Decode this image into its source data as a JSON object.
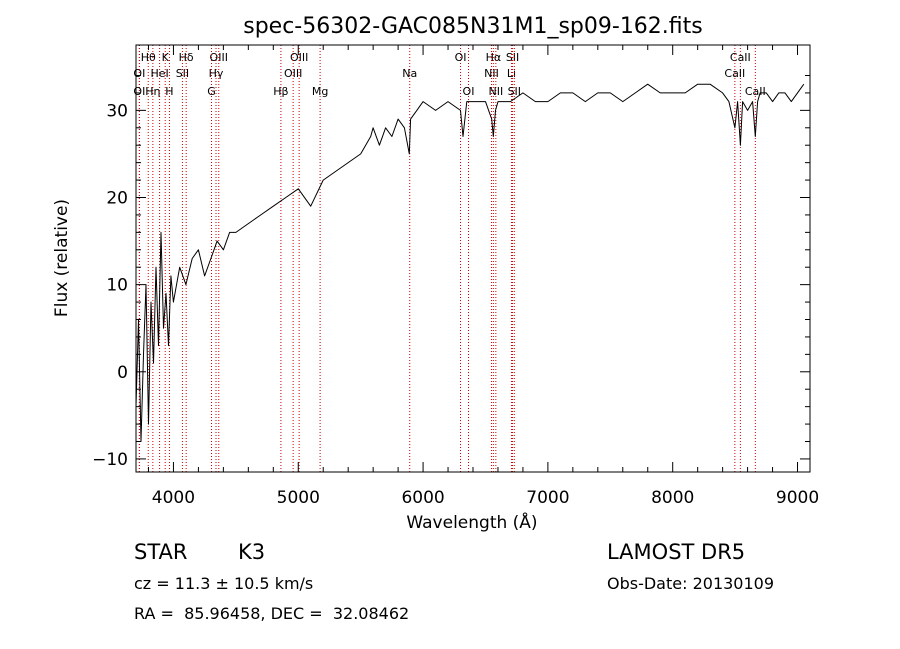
{
  "chart_data": {
    "type": "line",
    "title": "spec-56302-GAC085N31M1_sp09-162.fits",
    "xlabel": "Wavelength (Å)",
    "ylabel": "Flux (relative)",
    "xlim": [
      3700,
      9100
    ],
    "ylim": [
      -11.5,
      37.5
    ],
    "x_ticks": [
      4000,
      5000,
      6000,
      7000,
      8000,
      9000
    ],
    "y_ticks": [
      -10,
      0,
      10,
      20,
      30
    ],
    "grid": false,
    "line_color": "#000000",
    "marker_color": "#cc0000",
    "series": [
      {
        "x": [
          3700,
          3720,
          3740,
          3760,
          3780,
          3800,
          3820,
          3840,
          3860,
          3880,
          3900,
          3920,
          3940,
          3960,
          3980,
          4000,
          4050,
          4100,
          4150,
          4200,
          4250,
          4300,
          4350,
          4400,
          4450,
          4500,
          4600,
          4700,
          4800,
          4900,
          5000,
          5100,
          5200,
          5300,
          5400,
          5500,
          5580,
          5600,
          5650,
          5700,
          5750,
          5800,
          5850,
          5890,
          5900,
          5950,
          6000,
          6100,
          6200,
          6300,
          6320,
          6350,
          6400,
          6500,
          6550,
          6563,
          6580,
          6600,
          6700,
          6800,
          6900,
          7000,
          7100,
          7200,
          7300,
          7400,
          7500,
          7600,
          7700,
          7800,
          7900,
          8000,
          8100,
          8200,
          8300,
          8400,
          8450,
          8498,
          8520,
          8542,
          8560,
          8600,
          8640,
          8662,
          8680,
          8700,
          8750,
          8800,
          8850,
          8900,
          8950,
          9000,
          9050
        ],
        "y": [
          -4,
          6,
          -8,
          2,
          10,
          -6,
          8,
          1,
          12,
          3,
          16,
          5,
          9,
          3,
          11,
          8,
          12,
          10,
          13,
          14,
          11,
          13,
          15,
          14,
          16,
          16,
          17,
          18,
          19,
          20,
          21,
          19,
          22,
          23,
          24,
          25,
          27,
          28,
          26,
          28,
          27,
          29,
          28,
          25,
          29,
          30,
          31,
          30,
          31,
          30,
          27,
          31,
          31,
          31,
          29,
          27,
          30,
          31,
          31,
          32,
          31,
          31,
          32,
          32,
          31,
          32,
          32,
          31,
          32,
          33,
          32,
          32,
          32,
          33,
          33,
          32,
          31,
          28,
          31,
          26,
          31,
          30,
          31,
          27,
          31,
          32,
          32,
          31,
          32,
          32,
          31,
          32,
          33
        ]
      }
    ],
    "line_markers": [
      {
        "label": "Hθ",
        "x": 3798,
        "row": 1
      },
      {
        "label": "OI",
        "x": 3727,
        "row": 2
      },
      {
        "label": "OI",
        "x": 3727,
        "row": 3
      },
      {
        "label": "Hη",
        "x": 3835,
        "row": 3
      },
      {
        "label": "HeI",
        "x": 3889,
        "row": 2
      },
      {
        "label": "K",
        "x": 3934,
        "row": 1
      },
      {
        "label": "H",
        "x": 3968,
        "row": 3
      },
      {
        "label": "Hδ",
        "x": 4102,
        "row": 1
      },
      {
        "label": "SII",
        "x": 4072,
        "row": 2
      },
      {
        "label": "OIII",
        "x": 4363,
        "row": 1
      },
      {
        "label": "Hγ",
        "x": 4341,
        "row": 2
      },
      {
        "label": "G",
        "x": 4305,
        "row": 3
      },
      {
        "label": "Hβ",
        "x": 4861,
        "row": 3
      },
      {
        "label": "OIII",
        "x": 5007,
        "row": 1
      },
      {
        "label": "OIII",
        "x": 4959,
        "row": 2
      },
      {
        "label": "Mg",
        "x": 5175,
        "row": 3
      },
      {
        "label": "Na",
        "x": 5893,
        "row": 2
      },
      {
        "label": "OI",
        "x": 6300,
        "row": 1
      },
      {
        "label": "OI",
        "x": 6364,
        "row": 3
      },
      {
        "label": "Hα",
        "x": 6563,
        "row": 1
      },
      {
        "label": "NII",
        "x": 6548,
        "row": 2
      },
      {
        "label": "NII",
        "x": 6583,
        "row": 3
      },
      {
        "label": "SII",
        "x": 6717,
        "row": 1
      },
      {
        "label": "Li",
        "x": 6708,
        "row": 2
      },
      {
        "label": "SII",
        "x": 6731,
        "row": 3
      },
      {
        "label": "CaII",
        "x": 8542,
        "row": 1
      },
      {
        "label": "CaII",
        "x": 8498,
        "row": 2
      },
      {
        "label": "CaII",
        "x": 8662,
        "row": 3
      }
    ]
  },
  "info": {
    "class_label": "STAR",
    "subclass": "K3",
    "survey": "LAMOST DR5",
    "cz": "cz = 11.3 ± 10.5 km/s",
    "obs_date": "Obs-Date: 20130109",
    "coords": "RA =  85.96458, DEC =  32.08462"
  }
}
